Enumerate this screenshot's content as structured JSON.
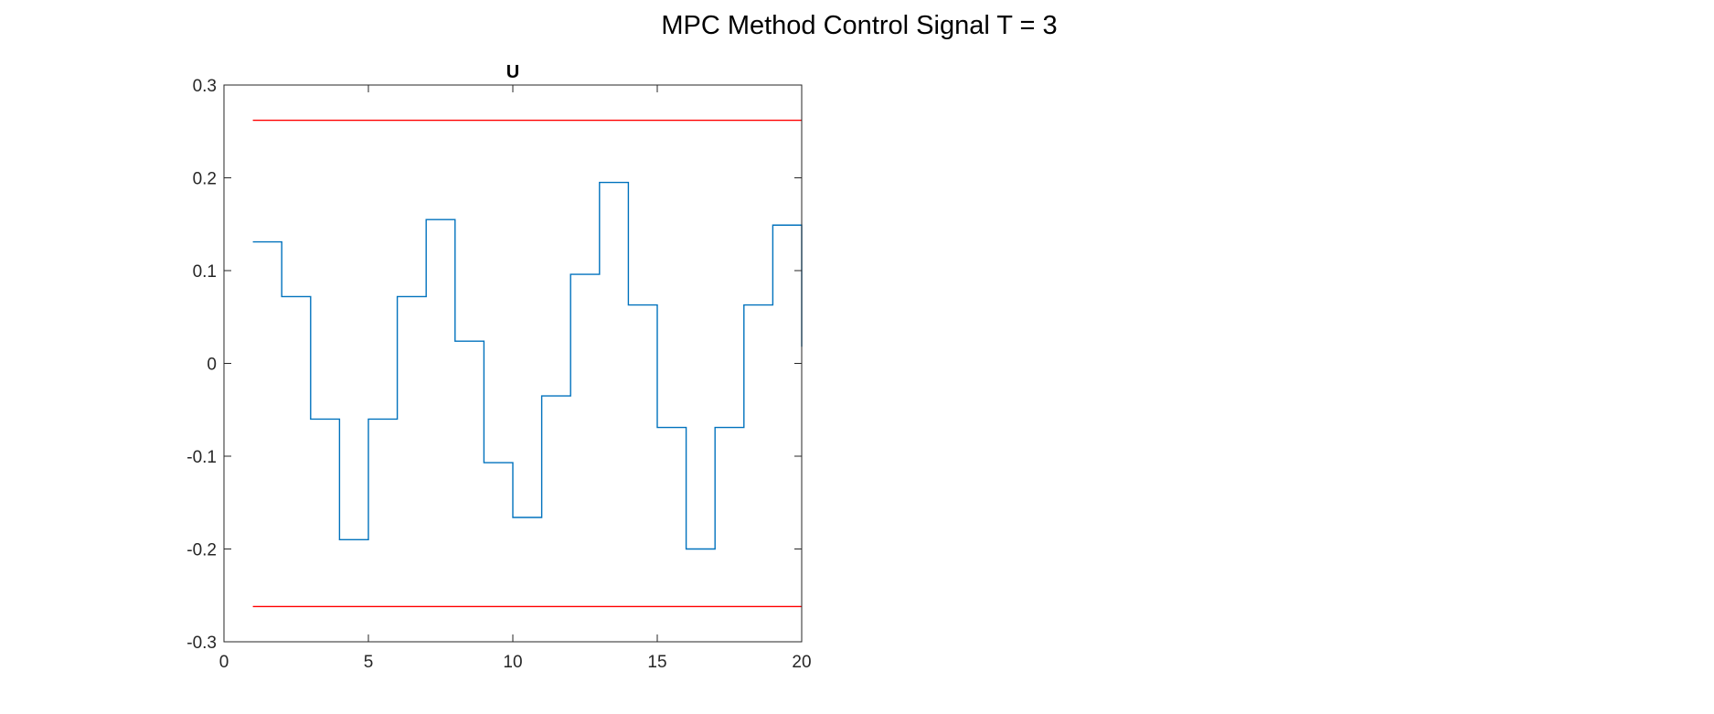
{
  "figure": {
    "title": "MPC Method Control Signal T = 3"
  },
  "chart_data": {
    "type": "line",
    "title": "U",
    "xlabel": "",
    "ylabel": "",
    "xlim": [
      0,
      20
    ],
    "ylim": [
      -0.3,
      0.3
    ],
    "xticks": [
      0,
      5,
      10,
      15,
      20
    ],
    "xtick_labels": [
      "0",
      "5",
      "10",
      "15",
      "20"
    ],
    "yticks": [
      0.3,
      0.2,
      0.1,
      0,
      -0.1,
      -0.2,
      -0.3
    ],
    "ytick_labels": [
      "0.3",
      "0.2",
      "0.1",
      "0",
      "-0.1",
      "-0.2",
      "-0.3"
    ],
    "grid": false,
    "legend": "none",
    "series": [
      {
        "style": "stairs",
        "color": "#0072BD",
        "x": [
          1,
          2,
          3,
          4,
          5,
          6,
          7,
          8,
          9,
          10,
          11,
          12,
          13,
          14,
          15,
          16,
          17,
          18,
          19,
          20
        ],
        "values": [
          0.131,
          0.072,
          -0.06,
          -0.19,
          -0.06,
          0.072,
          0.155,
          0.024,
          -0.107,
          -0.166,
          -0.035,
          0.096,
          0.195,
          0.063,
          -0.069,
          -0.2,
          -0.069,
          0.063,
          0.149,
          0.018
        ]
      },
      {
        "style": "line",
        "color": "#FF0000",
        "x": [
          1,
          20
        ],
        "values": [
          0.262,
          0.262
        ]
      },
      {
        "style": "line",
        "color": "#FF0000",
        "x": [
          1,
          20
        ],
        "values": [
          -0.262,
          -0.262
        ]
      }
    ]
  }
}
